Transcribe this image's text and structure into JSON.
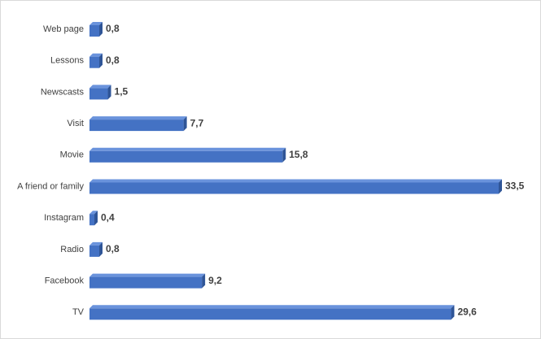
{
  "chart_data": {
    "type": "bar3d-horizontal",
    "categories": [
      "Web page",
      "Lessons",
      "Newscasts",
      "Visit",
      "Movie",
      "A friend or family",
      "Instagram",
      "Radio",
      "Facebook",
      "TV"
    ],
    "values": [
      0.8,
      0.8,
      1.5,
      7.7,
      15.8,
      33.5,
      0.4,
      0.8,
      9.2,
      29.6
    ],
    "value_labels": [
      "0,8",
      "0,8",
      "1,5",
      "7,7",
      "15,8",
      "33,5",
      "0,4",
      "0,8",
      "9,2",
      "29,6"
    ],
    "color": "#4472c4"
  }
}
